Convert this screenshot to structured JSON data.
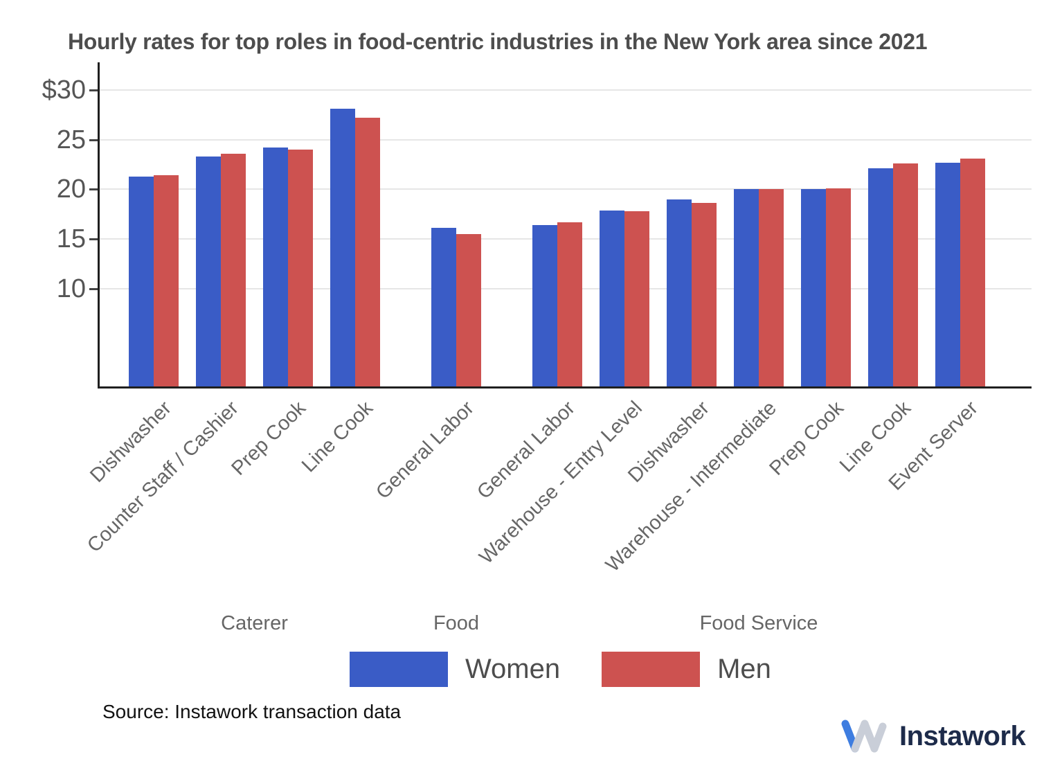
{
  "title": "Hourly rates for top roles in food-centric industries in the New York area since 2021",
  "source_note": "Source: Instawork transaction data",
  "logo": {
    "name": "Instawork"
  },
  "legend": {
    "items": [
      {
        "label": "Women",
        "key": "women"
      },
      {
        "label": "Men",
        "key": "men"
      }
    ]
  },
  "colors": {
    "women": "#3A5CC6",
    "men": "#CD5250",
    "gridline": "#e6e6e6",
    "axis": "#1f1f1f",
    "ytick_text": "#555555",
    "xtick_text": "#666666",
    "industry_text": "#666666",
    "title_text": "#4d4d4d",
    "legend_text": "#4d4d4d",
    "source_text": "#111111",
    "logo_text": "#1d2b4a",
    "logo_blue": "#3e7de0",
    "logo_gray": "#c9ced8"
  },
  "chart_data": {
    "type": "bar",
    "title": "Hourly rates for top roles in food-centric industries in the New York area since 2021",
    "categories": [
      "Dishwasher",
      "Counter Staff / Cashier",
      "Prep Cook",
      "Line Cook",
      "General Labor",
      "General Labor",
      "Warehouse - Entry Level",
      "Dishwasher",
      "Warehouse - Intermediate",
      "Prep Cook",
      "Line Cook",
      "Event Server"
    ],
    "category_industries": [
      "Caterer",
      "Caterer",
      "Caterer",
      "Caterer",
      "Food",
      "Food Service",
      "Food Service",
      "Food Service",
      "Food Service",
      "Food Service",
      "Food Service",
      "Food Service"
    ],
    "industry_labels": [
      "Caterer",
      "Food",
      "Food Service"
    ],
    "series": [
      {
        "name": "Women",
        "key": "women",
        "values": [
          21.3,
          23.3,
          24.2,
          28.1,
          16.1,
          16.4,
          17.9,
          19.0,
          20.0,
          20.0,
          22.1,
          22.7
        ]
      },
      {
        "name": "Men",
        "key": "men",
        "values": [
          21.4,
          23.6,
          24.0,
          27.2,
          15.5,
          16.7,
          17.8,
          18.6,
          20.0,
          20.1,
          22.6,
          23.1
        ]
      }
    ],
    "yticks": [
      {
        "label": "$30",
        "value": 30
      },
      {
        "label": "25",
        "value": 25
      },
      {
        "label": "20",
        "value": 20
      },
      {
        "label": "15",
        "value": 15
      },
      {
        "label": "10",
        "value": 10
      }
    ],
    "ylim": [
      0,
      32.8
    ],
    "xlabel": "",
    "ylabel": "",
    "grid": true,
    "legend_position": "bottom"
  }
}
